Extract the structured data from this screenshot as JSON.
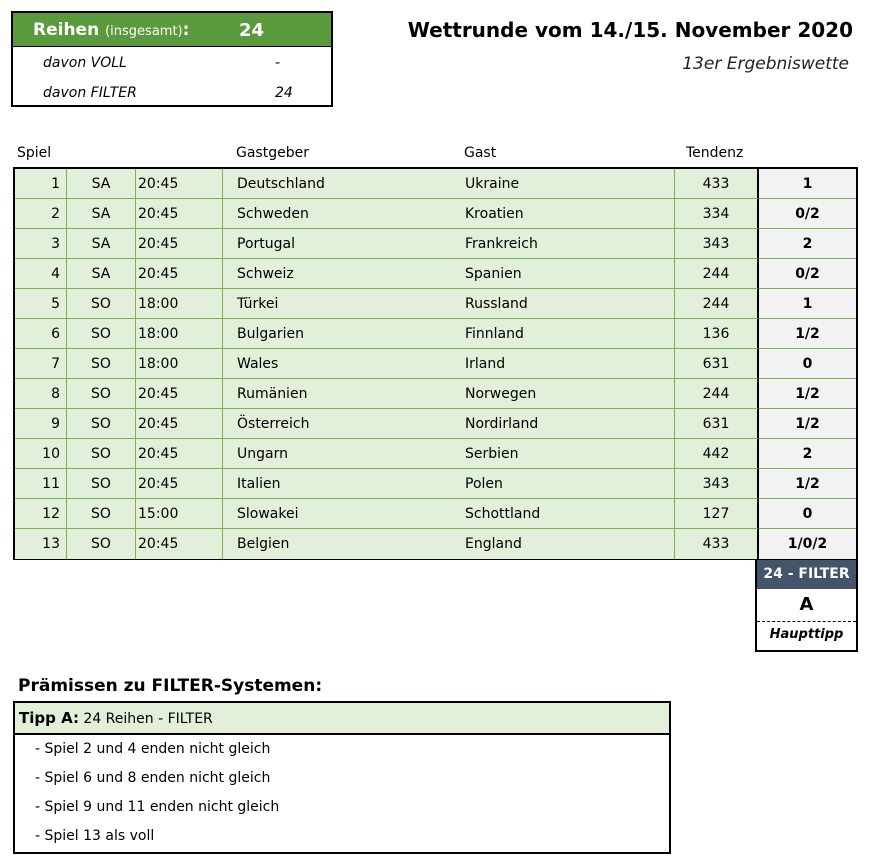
{
  "summary": {
    "label": "Reihen",
    "label_small": "(insgesamt)",
    "label_colon": ":",
    "total": "24",
    "rows": [
      {
        "key": "davon VOLL",
        "value": "-"
      },
      {
        "key": "davon FILTER",
        "value": "24"
      }
    ]
  },
  "title": "Wettrunde vom 14./15. November 2020",
  "subtitle": "13er Ergebniswette",
  "columns": {
    "spiel": "Spiel",
    "gastgeber": "Gastgeber",
    "gast": "Gast",
    "tendenz": "Tendenz"
  },
  "matches": [
    {
      "num": "1",
      "day": "SA",
      "time": "20:45",
      "home": "Deutschland",
      "away": "Ukraine",
      "tendenz": "433",
      "tip": "1"
    },
    {
      "num": "2",
      "day": "SA",
      "time": "20:45",
      "home": "Schweden",
      "away": "Kroatien",
      "tendenz": "334",
      "tip": "0/2"
    },
    {
      "num": "3",
      "day": "SA",
      "time": "20:45",
      "home": "Portugal",
      "away": "Frankreich",
      "tendenz": "343",
      "tip": "2"
    },
    {
      "num": "4",
      "day": "SA",
      "time": "20:45",
      "home": "Schweiz",
      "away": "Spanien",
      "tendenz": "244",
      "tip": "0/2"
    },
    {
      "num": "5",
      "day": "SO",
      "time": "18:00",
      "home": "Türkei",
      "away": "Russland",
      "tendenz": "244",
      "tip": "1"
    },
    {
      "num": "6",
      "day": "SO",
      "time": "18:00",
      "home": "Bulgarien",
      "away": "Finnland",
      "tendenz": "136",
      "tip": "1/2"
    },
    {
      "num": "7",
      "day": "SO",
      "time": "18:00",
      "home": "Wales",
      "away": "Irland",
      "tendenz": "631",
      "tip": "0"
    },
    {
      "num": "8",
      "day": "SO",
      "time": "20:45",
      "home": "Rumänien",
      "away": "Norwegen",
      "tendenz": "244",
      "tip": "1/2"
    },
    {
      "num": "9",
      "day": "SO",
      "time": "20:45",
      "home": "Österreich",
      "away": "Nordirland",
      "tendenz": "631",
      "tip": "1/2"
    },
    {
      "num": "10",
      "day": "SO",
      "time": "20:45",
      "home": "Ungarn",
      "away": "Serbien",
      "tendenz": "442",
      "tip": "2"
    },
    {
      "num": "11",
      "day": "SO",
      "time": "20:45",
      "home": "Italien",
      "away": "Polen",
      "tendenz": "343",
      "tip": "1/2"
    },
    {
      "num": "12",
      "day": "SO",
      "time": "15:00",
      "home": "Slowakei",
      "away": "Schottland",
      "tendenz": "127",
      "tip": "0"
    },
    {
      "num": "13",
      "day": "SO",
      "time": "20:45",
      "home": "Belgien",
      "away": "England",
      "tendenz": "433",
      "tip": "1/0/2"
    }
  ],
  "filter": {
    "header": "24 - FILTER",
    "letter": "A",
    "note": "Haupttipp"
  },
  "premises": {
    "title": "Prämissen zu FILTER-Systemen:",
    "tipp_label": "Tipp A:",
    "tipp_text": " 24 Reihen - FILTER",
    "items": [
      "- Spiel 2 und 4 enden nicht gleich",
      "- Spiel 6 und 8 enden nicht gleich",
      "- Spiel 9 und 11 enden nicht gleich",
      "- Spiel 13 als voll"
    ]
  }
}
